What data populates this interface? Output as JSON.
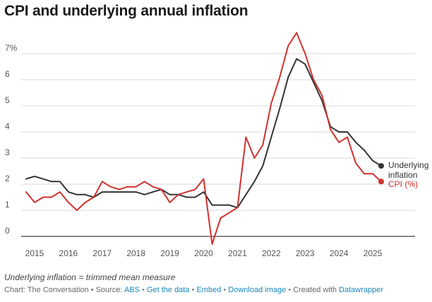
{
  "title": "CPI and underlying annual inflation",
  "chart_data": {
    "type": "line",
    "y_unit_suffix": "%",
    "ylim": [
      0,
      7.8
    ],
    "y_ticks": [
      0,
      1,
      2,
      3,
      4,
      5,
      6,
      7
    ],
    "y_tick_labels": [
      "0",
      "1",
      "2",
      "3",
      "4",
      "5",
      "6",
      "7%"
    ],
    "x_tick_labels": [
      "2015",
      "2016",
      "2017",
      "2018",
      "2019",
      "2020",
      "2021",
      "2022",
      "2023",
      "2024",
      "2025"
    ],
    "x_ticks": [
      2015,
      2016,
      2017,
      2018,
      2019,
      2020,
      2021,
      2022,
      2023,
      2024,
      2025
    ],
    "grid": true,
    "series": [
      {
        "name": "Underlying inflation",
        "label_lines": [
          "Underlying",
          "inflation"
        ],
        "color": "#333333",
        "points": [
          [
            2014.75,
            2.2
          ],
          [
            2015.0,
            2.3
          ],
          [
            2015.25,
            2.2
          ],
          [
            2015.5,
            2.1
          ],
          [
            2015.75,
            2.1
          ],
          [
            2016.0,
            1.7
          ],
          [
            2016.25,
            1.6
          ],
          [
            2016.5,
            1.6
          ],
          [
            2016.75,
            1.5
          ],
          [
            2017.0,
            1.7
          ],
          [
            2017.25,
            1.7
          ],
          [
            2017.5,
            1.7
          ],
          [
            2017.75,
            1.7
          ],
          [
            2018.0,
            1.7
          ],
          [
            2018.25,
            1.6
          ],
          [
            2018.5,
            1.7
          ],
          [
            2018.75,
            1.8
          ],
          [
            2019.0,
            1.6
          ],
          [
            2019.25,
            1.6
          ],
          [
            2019.5,
            1.5
          ],
          [
            2019.75,
            1.5
          ],
          [
            2020.0,
            1.7
          ],
          [
            2020.25,
            1.2
          ],
          [
            2020.5,
            1.2
          ],
          [
            2020.75,
            1.2
          ],
          [
            2021.0,
            1.1
          ],
          [
            2021.25,
            1.6
          ],
          [
            2021.5,
            2.1
          ],
          [
            2021.75,
            2.7
          ],
          [
            2022.0,
            3.8
          ],
          [
            2022.25,
            4.9
          ],
          [
            2022.5,
            6.1
          ],
          [
            2022.75,
            6.8
          ],
          [
            2023.0,
            6.6
          ],
          [
            2023.25,
            5.9
          ],
          [
            2023.5,
            5.2
          ],
          [
            2023.75,
            4.2
          ],
          [
            2024.0,
            4.0
          ],
          [
            2024.25,
            4.0
          ],
          [
            2024.5,
            3.6
          ],
          [
            2024.75,
            3.3
          ],
          [
            2025.0,
            2.9
          ],
          [
            2025.25,
            2.7
          ]
        ]
      },
      {
        "name": "CPI (%)",
        "label_lines": [
          "CPI (%)"
        ],
        "color": "#d0312d",
        "points": [
          [
            2014.75,
            1.7
          ],
          [
            2015.0,
            1.3
          ],
          [
            2015.25,
            1.5
          ],
          [
            2015.5,
            1.5
          ],
          [
            2015.75,
            1.7
          ],
          [
            2016.0,
            1.3
          ],
          [
            2016.25,
            1.0
          ],
          [
            2016.5,
            1.3
          ],
          [
            2016.75,
            1.5
          ],
          [
            2017.0,
            2.1
          ],
          [
            2017.25,
            1.9
          ],
          [
            2017.5,
            1.8
          ],
          [
            2017.75,
            1.9
          ],
          [
            2018.0,
            1.9
          ],
          [
            2018.25,
            2.1
          ],
          [
            2018.5,
            1.9
          ],
          [
            2018.75,
            1.8
          ],
          [
            2019.0,
            1.3
          ],
          [
            2019.25,
            1.6
          ],
          [
            2019.5,
            1.7
          ],
          [
            2019.75,
            1.8
          ],
          [
            2020.0,
            2.2
          ],
          [
            2020.25,
            -0.3
          ],
          [
            2020.5,
            0.7
          ],
          [
            2020.75,
            0.9
          ],
          [
            2021.0,
            1.1
          ],
          [
            2021.25,
            3.8
          ],
          [
            2021.5,
            3.0
          ],
          [
            2021.75,
            3.5
          ],
          [
            2022.0,
            5.1
          ],
          [
            2022.25,
            6.1
          ],
          [
            2022.5,
            7.3
          ],
          [
            2022.75,
            7.8
          ],
          [
            2023.0,
            7.0
          ],
          [
            2023.25,
            6.0
          ],
          [
            2023.5,
            5.4
          ],
          [
            2023.75,
            4.1
          ],
          [
            2024.0,
            3.6
          ],
          [
            2024.25,
            3.8
          ],
          [
            2024.5,
            2.8
          ],
          [
            2024.75,
            2.4
          ],
          [
            2025.0,
            2.4
          ],
          [
            2025.25,
            2.1
          ]
        ]
      }
    ]
  },
  "notes": "Underlying inflation = trimmed mean measure",
  "footer": {
    "prefix": "Chart: The Conversation • Source: ",
    "source_link": "ABS",
    "get_data": "Get the data",
    "embed": "Embed",
    "download": "Download image",
    "created_with": "Created with ",
    "tool": "Datawrapper"
  }
}
